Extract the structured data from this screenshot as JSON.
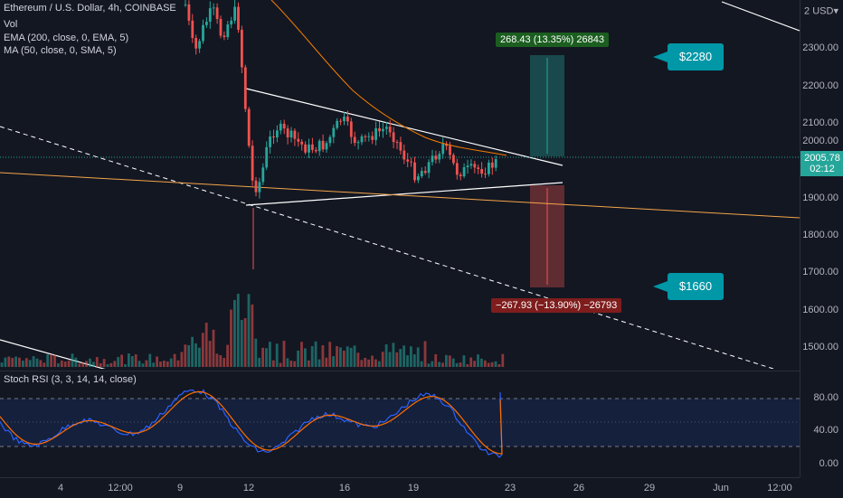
{
  "legend": {
    "symbol": "Ethereum / U.S. Dollar, 4h, COINBASE",
    "vol": "Vol",
    "ema": "EMA (200, close, 0, EMA, 5)",
    "ma": "MA (50, close, 0, SMA, 5)"
  },
  "price_scale": {
    "currency": "USD",
    "currency_prefix": "2",
    "labels": [
      "2300.00",
      "2200.00",
      "2100.00",
      "2000.00",
      "1900.00",
      "1800.00",
      "1700.00",
      "1600.00",
      "1500.00"
    ],
    "current_price": "2005.78",
    "countdown": "02:12"
  },
  "rsi": {
    "title": "Stoch RSI (3, 3, 14, 14, close)",
    "labels": [
      "80.00",
      "40.00",
      "0.00"
    ]
  },
  "time_axis": [
    "4",
    "12:00",
    "9",
    "12",
    "16",
    "19",
    "23",
    "26",
    "29",
    "Jun",
    "12:00"
  ],
  "callouts": {
    "target_up": "$2280",
    "target_down": "$1660"
  },
  "long_position": {
    "label": "268.43 (13.35%) 26843"
  },
  "short_position": {
    "label": "−267.93 (−13.90%) −26793"
  },
  "colors": {
    "background": "#131722",
    "up": "#26a69a",
    "down": "#ef5350",
    "ema": "#f57c00",
    "rsi_k": "#2962ff",
    "rsi_d": "#ff6d00",
    "callout": "#0097a7"
  }
}
